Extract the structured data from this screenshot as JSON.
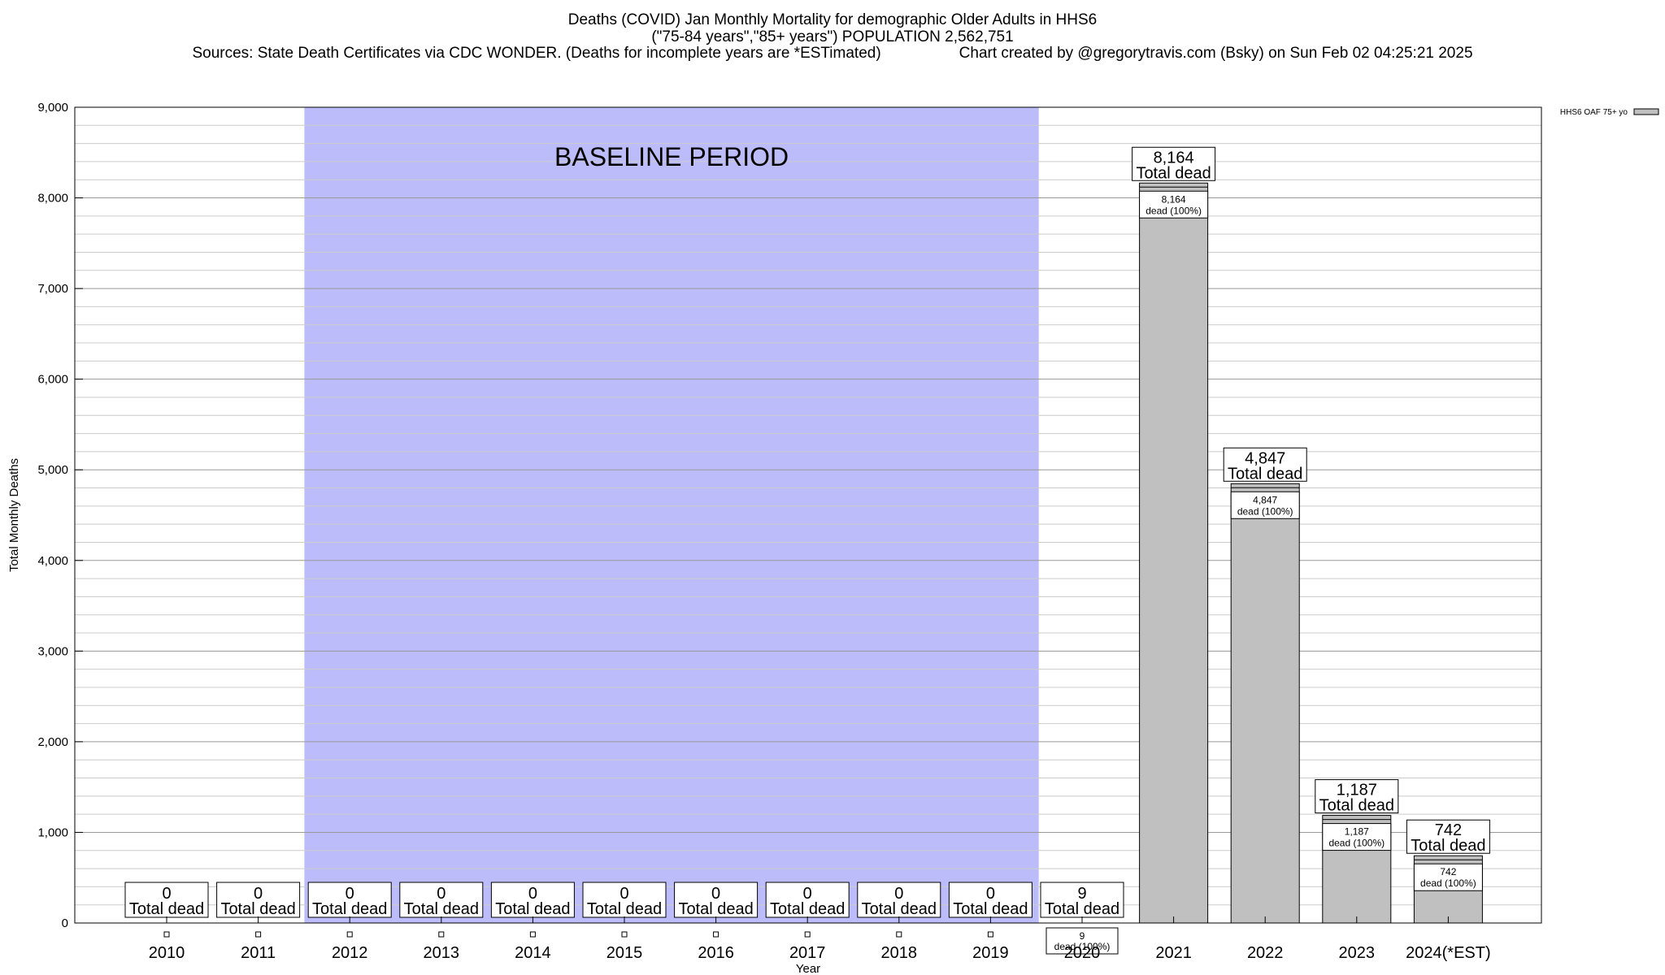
{
  "header": {
    "line1": "Deaths (COVID) Jan Monthly Mortality for demographic Older Adults in HHS6",
    "line2": "(\"75-84 years\",\"85+ years\") POPULATION 2,562,751",
    "line3_left": "Sources: State Death Certificates via CDC WONDER. (Deaths for incomplete years are *ESTimated)",
    "line3_right": "Chart created by @gregorytravis.com (Bsky) on Sun Feb 02 04:25:21 2025"
  },
  "chart_data": {
    "type": "bar",
    "xlabel": "Year",
    "ylabel": "Total Monthly Deaths",
    "ylim": [
      0,
      9000
    ],
    "yticks": [
      0,
      1000,
      2000,
      3000,
      4000,
      5000,
      6000,
      7000,
      8000,
      9000
    ],
    "ytick_labels": [
      "0",
      "1,000",
      "2,000",
      "3,000",
      "4,000",
      "5,000",
      "6,000",
      "7,000",
      "8,000",
      "9,000"
    ],
    "categories": [
      "2010",
      "2011",
      "2012",
      "2013",
      "2014",
      "2015",
      "2016",
      "2017",
      "2018",
      "2019",
      "2020",
      "2021",
      "2022",
      "2023",
      "2024(*EST)"
    ],
    "series": [
      {
        "name": "HHS6 OAF 75+ yo",
        "values": [
          0,
          0,
          0,
          0,
          0,
          0,
          0,
          0,
          0,
          0,
          9,
          8164,
          4847,
          1187,
          742
        ],
        "color": "#c0c0c0"
      }
    ],
    "total_labels": [
      "0",
      "0",
      "0",
      "0",
      "0",
      "0",
      "0",
      "0",
      "0",
      "0",
      "9",
      "8,164",
      "4,847",
      "1,187",
      "742"
    ],
    "total_suffix": "Total dead",
    "inner_suffix": "dead (100%)",
    "baseline": {
      "label": "BASELINE PERIOD",
      "from": "2012",
      "to": "2019",
      "color": "#bcbcfa"
    },
    "legend": {
      "label": "HHS6 OAF 75+ yo",
      "placement": "top-right"
    },
    "grid": true
  }
}
